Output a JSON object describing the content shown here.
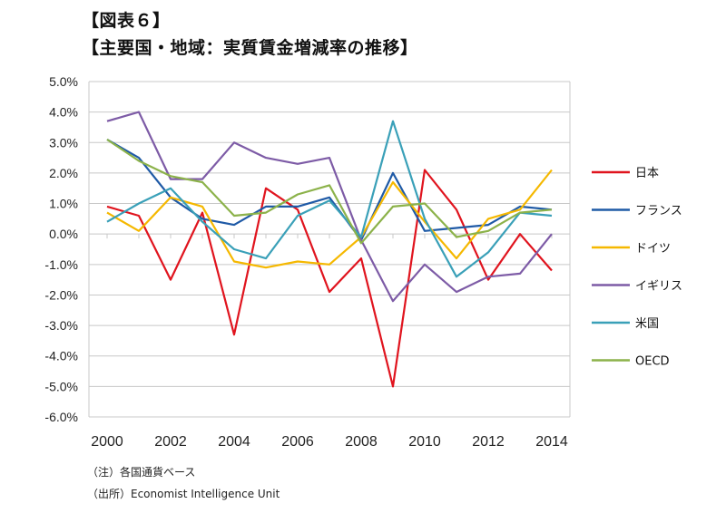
{
  "header": {
    "figure_label": "【図表６】",
    "title": "【主要国・地域：実質賃金増減率の推移】"
  },
  "notes": {
    "note": "（注）各国通貨ベース",
    "source": "（出所）Economist Intelligence Unit"
  },
  "chart_data": {
    "type": "line",
    "title": "【主要国・地域：実質賃金増減率の推移】",
    "xlabel": "",
    "ylabel": "",
    "x": [
      2000,
      2001,
      2002,
      2003,
      2004,
      2005,
      2006,
      2007,
      2008,
      2009,
      2010,
      2011,
      2012,
      2013,
      2014
    ],
    "x_tick_labels": [
      "2000",
      "2002",
      "2004",
      "2006",
      "2008",
      "2010",
      "2012",
      "2014"
    ],
    "y_tick_labels": [
      "5.0%",
      "4.0%",
      "3.0%",
      "2.0%",
      "1.0%",
      "0.0%",
      "-1.0%",
      "-2.0%",
      "-3.0%",
      "-4.0%",
      "-5.0%",
      "-6.0%"
    ],
    "ylim": [
      -6,
      5
    ],
    "grid": "horizontal",
    "legend_position": "right",
    "series": [
      {
        "name": "日本",
        "color": "#e0141e",
        "values": [
          0.9,
          0.6,
          -1.5,
          0.7,
          -3.3,
          1.5,
          0.8,
          -1.9,
          -0.8,
          -5.0,
          2.1,
          0.8,
          -1.5,
          0.0,
          -1.2
        ]
      },
      {
        "name": "フランス",
        "color": "#1f5aa6",
        "values": [
          3.1,
          2.5,
          1.2,
          0.5,
          0.3,
          0.9,
          0.9,
          1.2,
          -0.2,
          2.0,
          0.1,
          0.2,
          0.3,
          0.9,
          0.8
        ]
      },
      {
        "name": "ドイツ",
        "color": "#f5b800",
        "values": [
          0.7,
          0.1,
          1.2,
          0.9,
          -0.9,
          -1.1,
          -0.9,
          -1.0,
          -0.1,
          1.7,
          0.4,
          -0.8,
          0.5,
          0.8,
          2.1
        ]
      },
      {
        "name": "イギリス",
        "color": "#7d5ba6",
        "values": [
          3.7,
          4.0,
          1.8,
          1.8,
          3.0,
          2.5,
          2.3,
          2.5,
          -0.2,
          -2.2,
          -1.0,
          -1.9,
          -1.4,
          -1.3,
          0.0
        ]
      },
      {
        "name": "米国",
        "color": "#3aa0b8",
        "values": [
          0.4,
          1.0,
          1.5,
          0.4,
          -0.5,
          -0.8,
          0.6,
          1.1,
          -0.1,
          3.7,
          0.5,
          -1.4,
          -0.6,
          0.7,
          0.6
        ]
      },
      {
        "name": "OECD",
        "color": "#8cb24a",
        "values": [
          3.1,
          2.4,
          1.9,
          1.7,
          0.6,
          0.7,
          1.3,
          1.6,
          -0.3,
          0.9,
          1.0,
          -0.1,
          0.1,
          0.7,
          0.8
        ]
      }
    ]
  }
}
